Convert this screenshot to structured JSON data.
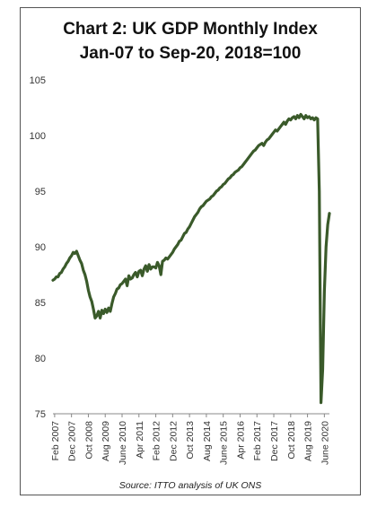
{
  "chart_data": {
    "type": "line",
    "title": "Chart 2: UK GDP Monthly Index",
    "subtitle": "Jan-07 to Sep-20, 2018=100",
    "source": "Source: ITTO analysis of UK ONS",
    "xlabel": "",
    "ylabel": "",
    "ylim": [
      75,
      105
    ],
    "yticks": [
      75,
      80,
      85,
      90,
      95,
      100,
      105
    ],
    "grid": false,
    "legend": "none",
    "line_color": "#3a5a2a",
    "xtick_labels": [
      "Feb 2007",
      "Dec 2007",
      "Oct 2008",
      "Aug 2009",
      "June 2010",
      "Apr 2011",
      "Feb 2012",
      "Dec 2012",
      "Oct 2013",
      "Aug 2014",
      "June 2015",
      "Apr 2016",
      "Feb 2017",
      "Dec 2017",
      "Oct 2018",
      "Aug 2019",
      "June 2020"
    ],
    "x_start": "2007-01",
    "series": [
      {
        "values": [
          87.0,
          87.1,
          87.3,
          87.3,
          87.6,
          87.7,
          88.0,
          88.2,
          88.5,
          88.7,
          89.0,
          89.2,
          89.5,
          89.4,
          89.6,
          89.2,
          88.8,
          88.5,
          87.9,
          87.5,
          86.9,
          86.1,
          85.5,
          85.1,
          84.4,
          83.6,
          83.8,
          84.2,
          83.6,
          84.3,
          84.0,
          84.4,
          84.1,
          84.5,
          84.2,
          84.9,
          85.5,
          85.8,
          86.2,
          86.3,
          86.6,
          86.7,
          86.9,
          87.1,
          86.5,
          87.4,
          87.1,
          87.2,
          87.5,
          87.7,
          87.3,
          87.8,
          87.9,
          87.4,
          88.0,
          88.3,
          87.8,
          88.4,
          88.0,
          88.2,
          88.2,
          88.1,
          88.6,
          88.3,
          87.5,
          88.7,
          88.8,
          89.0,
          88.9,
          89.1,
          89.3,
          89.5,
          89.8,
          90.0,
          90.2,
          90.5,
          90.6,
          90.9,
          91.2,
          91.3,
          91.6,
          91.8,
          92.1,
          92.4,
          92.7,
          92.9,
          93.1,
          93.4,
          93.6,
          93.7,
          93.9,
          94.1,
          94.2,
          94.3,
          94.5,
          94.6,
          94.8,
          95.0,
          95.1,
          95.3,
          95.4,
          95.6,
          95.7,
          95.9,
          96.1,
          96.2,
          96.4,
          96.5,
          96.7,
          96.8,
          96.9,
          97.1,
          97.2,
          97.4,
          97.6,
          97.8,
          98.0,
          98.2,
          98.4,
          98.6,
          98.7,
          98.9,
          99.1,
          99.2,
          99.3,
          99.1,
          99.4,
          99.6,
          99.7,
          99.9,
          100.1,
          100.3,
          100.5,
          100.4,
          100.6,
          100.8,
          101.0,
          101.2,
          101.0,
          101.3,
          101.5,
          101.4,
          101.6,
          101.7,
          101.5,
          101.8,
          101.6,
          101.9,
          101.7,
          101.5,
          101.8,
          101.6,
          101.7,
          101.5,
          101.6,
          101.4,
          101.6,
          101.5,
          95.0,
          76.0,
          79.0,
          86.0,
          90.0,
          92.0,
          93.0
        ]
      }
    ]
  }
}
